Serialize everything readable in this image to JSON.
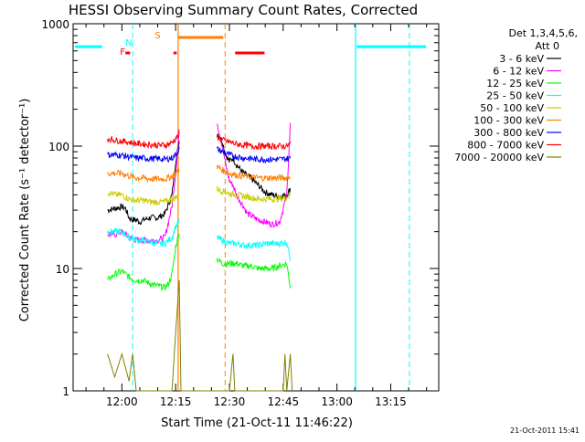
{
  "chart_data": {
    "type": "line",
    "title": "HESSI Observing Summary Count Rates, Corrected",
    "xlabel": "Start Time (21-Oct-11 11:46:22)",
    "ylabel": "Corrected Count Rate (s⁻¹ detector⁻¹)",
    "yscale": "log",
    "ylim": [
      1,
      1000
    ],
    "xlim_minutes": [
      -13.6,
      88.4
    ],
    "x_ticks": [
      {
        "label": "12:00",
        "minutes": 0
      },
      {
        "label": "12:15",
        "minutes": 15
      },
      {
        "label": "12:30",
        "minutes": 30
      },
      {
        "label": "12:45",
        "minutes": 45
      },
      {
        "label": "13:00",
        "minutes": 60
      },
      {
        "label": "13:15",
        "minutes": 75
      }
    ],
    "y_ticks": [
      {
        "label": "1",
        "value": 1
      },
      {
        "label": "10",
        "value": 10
      },
      {
        "label": "100",
        "value": 100
      },
      {
        "label": "1000",
        "value": 1000
      }
    ],
    "legend": {
      "position": "right",
      "header_lines": [
        "Det 1,3,4,5,6,",
        "Att 0"
      ]
    },
    "series": [
      {
        "name": "3 - 6 keV",
        "color": "#000000",
        "points": [
          [
            -4,
            30
          ],
          [
            -2,
            31
          ],
          [
            0,
            32
          ],
          [
            1,
            31
          ],
          [
            2,
            26
          ],
          [
            3,
            25
          ],
          [
            4,
            25
          ],
          [
            5,
            24
          ],
          [
            6,
            25
          ],
          [
            8,
            26
          ],
          [
            10,
            26
          ],
          [
            12,
            28
          ],
          [
            14,
            40
          ],
          [
            15,
            75
          ],
          [
            16,
            110
          ],
          [
            26.5,
            130
          ],
          [
            28,
            110
          ],
          [
            29,
            85
          ],
          [
            30,
            75
          ],
          [
            31,
            80
          ],
          [
            32,
            70
          ],
          [
            34,
            60
          ],
          [
            36,
            55
          ],
          [
            38,
            48
          ],
          [
            40,
            42
          ],
          [
            42,
            40
          ],
          [
            44,
            39
          ],
          [
            46,
            40
          ],
          [
            47,
            45
          ]
        ]
      },
      {
        "name": "6 - 12 keV",
        "color": "#ff00ff",
        "points": [
          [
            -4,
            19
          ],
          [
            -2,
            19
          ],
          [
            0,
            20
          ],
          [
            2,
            18
          ],
          [
            4,
            17
          ],
          [
            6,
            17
          ],
          [
            8,
            17
          ],
          [
            10,
            17
          ],
          [
            12,
            18
          ],
          [
            13,
            24
          ],
          [
            14,
            33
          ],
          [
            15,
            60
          ],
          [
            16,
            130
          ],
          [
            26.5,
            160
          ],
          [
            28,
            100
          ],
          [
            29,
            70
          ],
          [
            30,
            52
          ],
          [
            31,
            48
          ],
          [
            32,
            40
          ],
          [
            34,
            32
          ],
          [
            35,
            28
          ],
          [
            36,
            27
          ],
          [
            38,
            25
          ],
          [
            40,
            24
          ],
          [
            42,
            23
          ],
          [
            44,
            24
          ],
          [
            46,
            40
          ],
          [
            47,
            150
          ]
        ]
      },
      {
        "name": "12 - 25 keV",
        "color": "#00ff00",
        "points": [
          [
            -4,
            8
          ],
          [
            -2,
            9
          ],
          [
            0,
            9.5
          ],
          [
            2,
            8.5
          ],
          [
            4,
            8
          ],
          [
            6,
            8
          ],
          [
            8,
            7.5
          ],
          [
            10,
            7.2
          ],
          [
            12,
            7
          ],
          [
            13,
            7.5
          ],
          [
            14,
            9
          ],
          [
            15,
            15
          ],
          [
            16,
            20
          ],
          [
            26.5,
            12
          ],
          [
            28,
            11
          ],
          [
            30,
            11
          ],
          [
            32,
            11
          ],
          [
            34,
            10.5
          ],
          [
            36,
            10.5
          ],
          [
            38,
            10
          ],
          [
            40,
            10
          ],
          [
            42,
            10
          ],
          [
            44,
            10.5
          ],
          [
            46,
            11
          ],
          [
            47,
            7
          ]
        ]
      },
      {
        "name": "25 - 50 keV",
        "color": "#00ffff",
        "points": [
          [
            -4,
            20
          ],
          [
            -2,
            20
          ],
          [
            0,
            20
          ],
          [
            2,
            18
          ],
          [
            4,
            17
          ],
          [
            6,
            17
          ],
          [
            8,
            16.5
          ],
          [
            10,
            16
          ],
          [
            12,
            16
          ],
          [
            13,
            17
          ],
          [
            14,
            18
          ],
          [
            15,
            22
          ],
          [
            16,
            24
          ],
          [
            26.5,
            18
          ],
          [
            28,
            17
          ],
          [
            30,
            16
          ],
          [
            32,
            16
          ],
          [
            34,
            15.5
          ],
          [
            36,
            15.5
          ],
          [
            38,
            15.5
          ],
          [
            40,
            16
          ],
          [
            42,
            16
          ],
          [
            44,
            16
          ],
          [
            46,
            16.5
          ],
          [
            47,
            12
          ]
        ]
      },
      {
        "name": "50 - 100 keV",
        "color": "#cccc00",
        "points": [
          [
            -4,
            42
          ],
          [
            -2,
            40
          ],
          [
            0,
            40
          ],
          [
            2,
            37
          ],
          [
            4,
            36
          ],
          [
            6,
            36
          ],
          [
            8,
            35
          ],
          [
            10,
            35
          ],
          [
            12,
            35
          ],
          [
            13,
            36
          ],
          [
            14,
            37
          ],
          [
            15,
            38
          ],
          [
            16,
            40
          ],
          [
            26.5,
            45
          ],
          [
            28,
            43
          ],
          [
            30,
            41
          ],
          [
            32,
            40
          ],
          [
            34,
            39
          ],
          [
            36,
            38
          ],
          [
            38,
            37
          ],
          [
            40,
            37
          ],
          [
            42,
            37
          ],
          [
            44,
            37
          ],
          [
            46,
            38
          ],
          [
            47,
            40
          ]
        ]
      },
      {
        "name": "100 - 300 keV",
        "color": "#ff7f00",
        "points": [
          [
            -4,
            60
          ],
          [
            -2,
            60
          ],
          [
            0,
            60
          ],
          [
            2,
            57
          ],
          [
            4,
            55
          ],
          [
            6,
            55
          ],
          [
            8,
            54
          ],
          [
            10,
            54
          ],
          [
            12,
            54
          ],
          [
            13,
            55
          ],
          [
            14,
            57
          ],
          [
            15,
            60
          ],
          [
            16,
            65
          ],
          [
            26.5,
            68
          ],
          [
            28,
            64
          ],
          [
            30,
            60
          ],
          [
            32,
            58
          ],
          [
            34,
            57
          ],
          [
            36,
            56
          ],
          [
            38,
            55
          ],
          [
            40,
            55
          ],
          [
            42,
            55
          ],
          [
            44,
            55
          ],
          [
            46,
            55
          ],
          [
            47,
            57
          ]
        ]
      },
      {
        "name": "300 - 800 keV",
        "color": "#0000ff",
        "points": [
          [
            -4,
            85
          ],
          [
            -2,
            85
          ],
          [
            0,
            84
          ],
          [
            2,
            82
          ],
          [
            4,
            80
          ],
          [
            6,
            80
          ],
          [
            8,
            79
          ],
          [
            10,
            79
          ],
          [
            12,
            78
          ],
          [
            13,
            79
          ],
          [
            14,
            80
          ],
          [
            15,
            85
          ],
          [
            16,
            95
          ],
          [
            26.5,
            95
          ],
          [
            28,
            90
          ],
          [
            30,
            85
          ],
          [
            32,
            82
          ],
          [
            34,
            80
          ],
          [
            36,
            79
          ],
          [
            38,
            78
          ],
          [
            40,
            78
          ],
          [
            42,
            78
          ],
          [
            44,
            78
          ],
          [
            46,
            79
          ],
          [
            47,
            80
          ]
        ]
      },
      {
        "name": "800 - 7000 keV",
        "color": "#ff0000",
        "points": [
          [
            -4,
            115
          ],
          [
            -2,
            112
          ],
          [
            0,
            110
          ],
          [
            2,
            108
          ],
          [
            4,
            105
          ],
          [
            6,
            104
          ],
          [
            8,
            103
          ],
          [
            10,
            102
          ],
          [
            12,
            102
          ],
          [
            13,
            104
          ],
          [
            14,
            107
          ],
          [
            15,
            115
          ],
          [
            16,
            125
          ],
          [
            26.5,
            120
          ],
          [
            28,
            112
          ],
          [
            30,
            108
          ],
          [
            32,
            104
          ],
          [
            34,
            102
          ],
          [
            36,
            100
          ],
          [
            38,
            100
          ],
          [
            40,
            100
          ],
          [
            42,
            100
          ],
          [
            44,
            100
          ],
          [
            46,
            100
          ],
          [
            47,
            105
          ]
        ]
      },
      {
        "name": "7000 - 20000 keV",
        "color": "#808000",
        "points": [
          [
            -4,
            2
          ],
          [
            -2,
            1.3
          ],
          [
            0,
            2
          ],
          [
            2,
            1.2
          ],
          [
            3,
            2
          ],
          [
            4,
            1
          ],
          [
            14,
            1
          ],
          [
            15,
            3
          ],
          [
            16,
            8
          ],
          [
            16.5,
            1
          ],
          [
            30,
            1
          ],
          [
            31,
            2
          ],
          [
            31.5,
            1
          ],
          [
            45,
            1
          ],
          [
            45.5,
            2
          ],
          [
            46,
            1
          ],
          [
            47,
            2
          ],
          [
            47.5,
            1
          ]
        ]
      }
    ],
    "cyan_line_left_value": 650,
    "cyan_line_right_value": 650,
    "markers": [
      {
        "label": "F",
        "color": "#ff0000",
        "minutes": 1.5
      },
      {
        "label": "N",
        "color": "#00ffff",
        "minutes": 3.0
      },
      {
        "label": "S",
        "color": "#ff7f00",
        "minutes": 11.2
      }
    ],
    "timestamp": "21-Oct-2011 15:41"
  }
}
